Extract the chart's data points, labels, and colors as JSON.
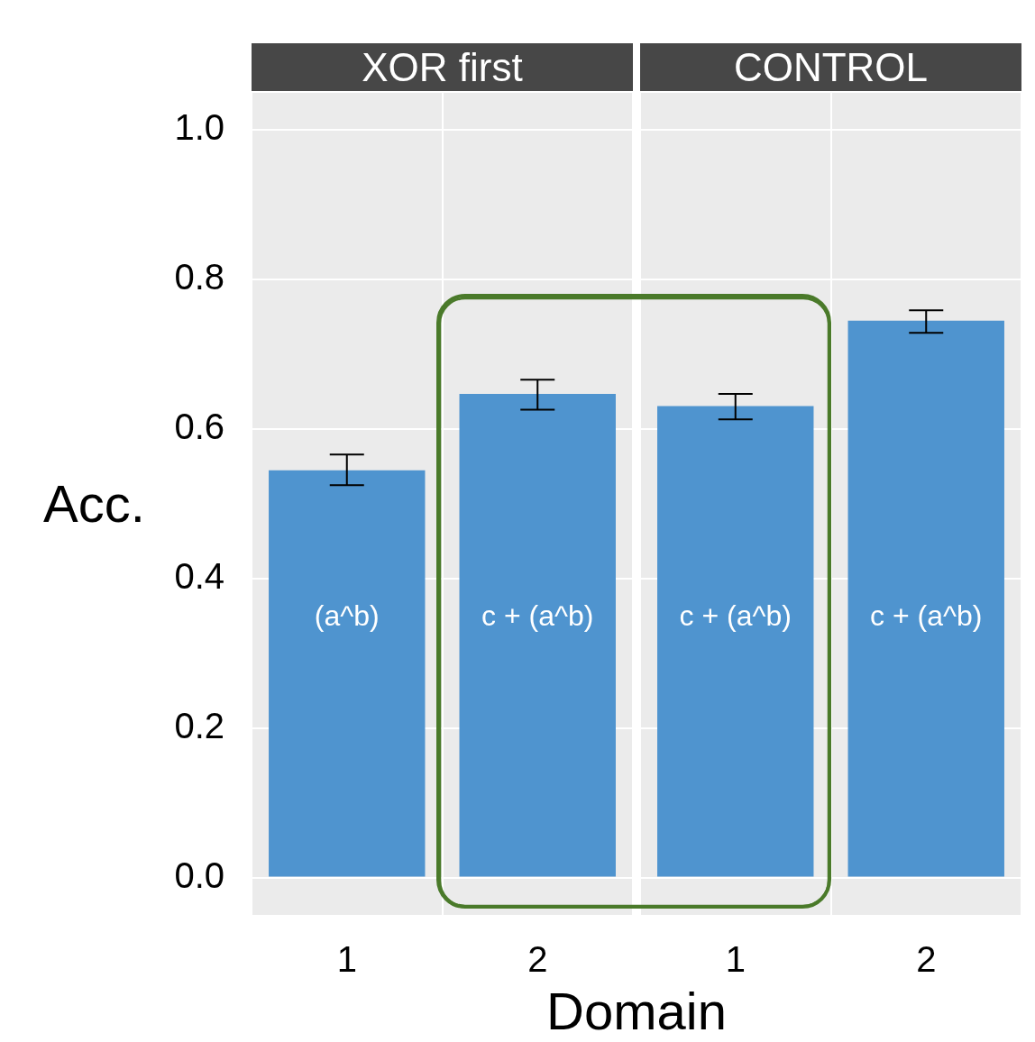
{
  "chart_data": [
    {
      "type": "bar",
      "title": "XOR first",
      "xlabel": "Domain",
      "ylabel": "Acc.",
      "categories": [
        "1",
        "2"
      ],
      "values": [
        0.545,
        0.647
      ],
      "errors": [
        [
          0.525,
          0.566
        ],
        [
          0.626,
          0.666
        ]
      ],
      "color": "#4f94cf",
      "ylim": [
        -0.05,
        1.05
      ],
      "yticks": [
        {
          "value": 0,
          "label": "0.0"
        },
        {
          "value": 0.2,
          "label": "0.2"
        },
        {
          "value": 0.4,
          "label": "0.4"
        },
        {
          "value": 0.6,
          "label": "0.6"
        },
        {
          "value": 0.8,
          "label": "0.8"
        },
        {
          "value": 1,
          "label": "1.0"
        }
      ],
      "grid": true,
      "annotations": [
        "(a^b)",
        "c + (a^b)"
      ]
    },
    {
      "type": "bar",
      "title": "CONTROL",
      "categories": [
        "1",
        "2"
      ],
      "values": [
        0.631,
        0.745
      ],
      "errors": [
        [
          0.613,
          0.647
        ],
        [
          0.729,
          0.759
        ]
      ],
      "color": "#4f94cf",
      "ylim": [
        -0.05,
        1.05
      ],
      "yticks": [
        0,
        0.2,
        0.4,
        0.6,
        0.8,
        1
      ],
      "grid": true,
      "tick_labels": "x",
      "annotations": [
        "c + (a^b)",
        "c + (a^b)"
      ]
    }
  ]
}
